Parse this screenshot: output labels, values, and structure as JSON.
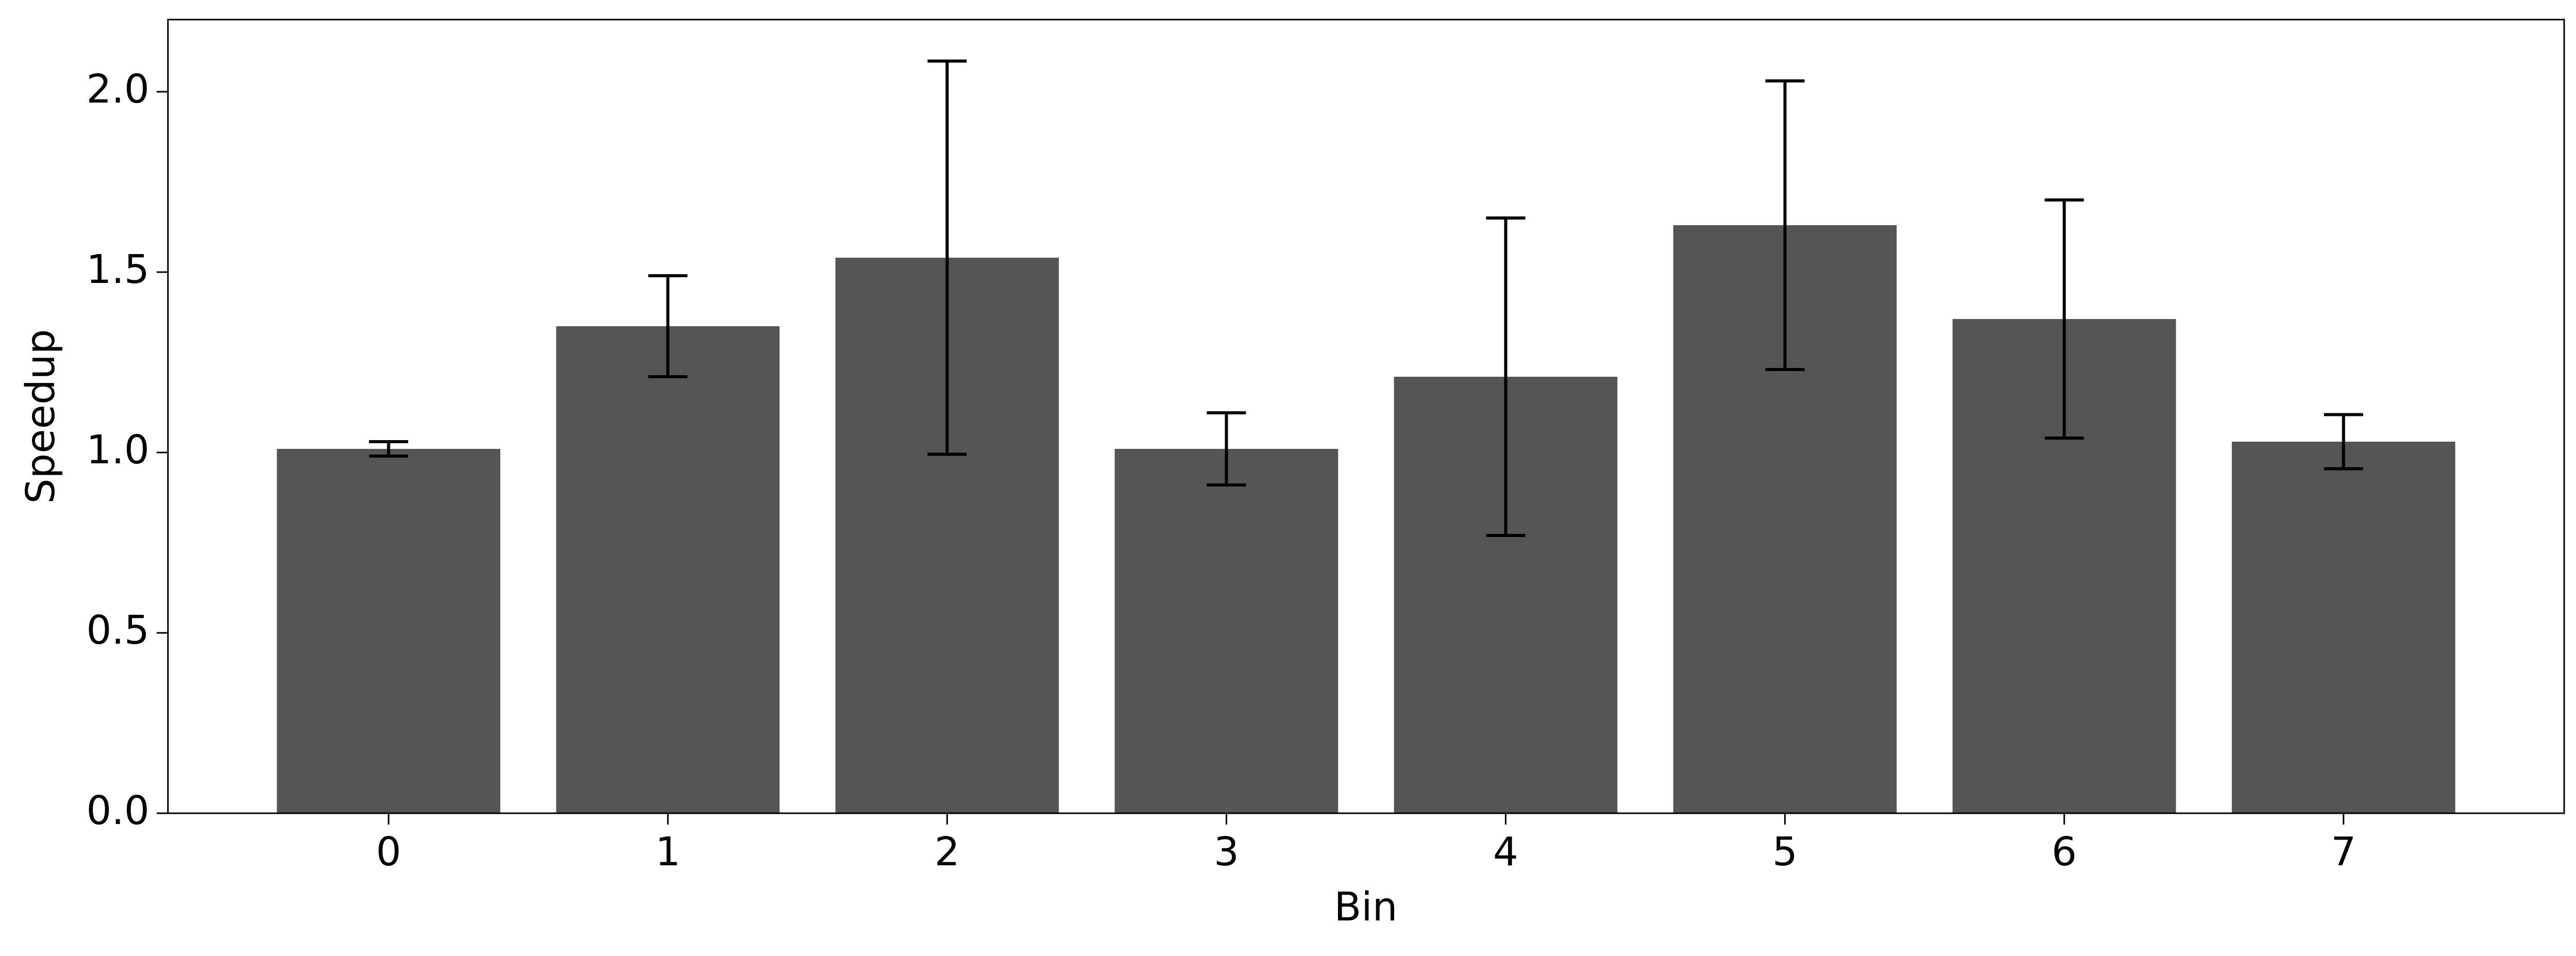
{
  "chart_data": {
    "type": "bar",
    "xlabel": "Bin",
    "ylabel": "Speedup",
    "x": [
      0,
      1,
      2,
      3,
      4,
      5,
      6,
      7
    ],
    "values": [
      1.01,
      1.35,
      1.54,
      1.01,
      1.21,
      1.63,
      1.37,
      1.03
    ],
    "errors": [
      0.02,
      0.14,
      0.545,
      0.1,
      0.44,
      0.4,
      0.33,
      0.075
    ],
    "color": "#555555",
    "error_color": "#000000",
    "xlim": [
      -0.79,
      7.79
    ],
    "xticks": [
      0,
      1,
      2,
      3,
      4,
      5,
      6,
      7
    ],
    "ylim": [
      0,
      2.2
    ],
    "yticks": [
      {
        "value": 0,
        "label": "0.0"
      },
      {
        "value": 0.5,
        "label": "0.5"
      },
      {
        "value": 1,
        "label": "1.0"
      },
      {
        "value": 1.5,
        "label": "1.5"
      },
      {
        "value": 2,
        "label": "2.0"
      }
    ],
    "grid": false
  }
}
